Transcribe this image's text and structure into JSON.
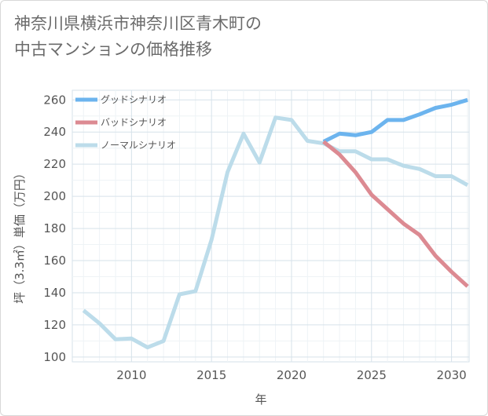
{
  "title": {
    "line1": "神奈川県横浜市神奈川区青木町の",
    "line2": "中古マンションの価格推移"
  },
  "chart_data": {
    "type": "line",
    "xlabel": "年",
    "ylabel": "坪（3.3㎡）単価（万円）",
    "xlim": [
      2006.3,
      2031.1
    ],
    "ylim": [
      97,
      266
    ],
    "xticks": [
      2010,
      2015,
      2020,
      2025,
      2030
    ],
    "yticks": [
      100,
      120,
      140,
      160,
      180,
      200,
      220,
      240,
      260
    ],
    "legend_position": "top-left",
    "series": [
      {
        "name": "グッドシナリオ",
        "color": "#6cb4ee",
        "x": [
          2022,
          2023,
          2024,
          2025,
          2026,
          2027,
          2028,
          2029,
          2030,
          2031
        ],
        "y": [
          234,
          239,
          238,
          240,
          247.5,
          247.5,
          251,
          255,
          257,
          260
        ]
      },
      {
        "name": "バッドシナリオ",
        "color": "#dc8a92",
        "x": [
          2022,
          2023,
          2024,
          2025,
          2026,
          2027,
          2028,
          2029,
          2030,
          2031
        ],
        "y": [
          234,
          226,
          215,
          201,
          192,
          183,
          176,
          163,
          153,
          144
        ]
      },
      {
        "name": "ノーマルシナリオ",
        "color": "#bcdcea",
        "x": [
          2007,
          2008,
          2009,
          2010,
          2011,
          2012,
          2013,
          2014,
          2015,
          2016,
          2017,
          2018,
          2019,
          2020,
          2021,
          2022,
          2023,
          2024,
          2025,
          2026,
          2027,
          2028,
          2029,
          2030,
          2031
        ],
        "y": [
          129,
          121,
          111,
          111.5,
          106,
          110,
          139,
          141,
          173,
          215,
          239,
          221,
          249,
          247.5,
          234.5,
          233,
          228,
          228,
          223,
          223,
          219,
          217,
          212.5,
          212.5,
          207
        ]
      }
    ]
  }
}
